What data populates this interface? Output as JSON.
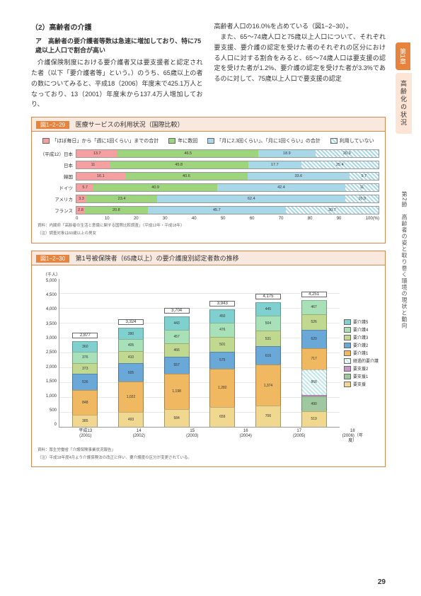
{
  "side": {
    "chapter": "第1章",
    "section": "高齢化の状況",
    "sub": "第2節　高齢者の姿と取り巻く環境の現状と動向"
  },
  "heading": "（2）高齢者の介護",
  "subheading": "ア　高齢者の要介護者等数は急速に増加しており、特に75歳以上人口で割合が高い",
  "leftpara": "介護保険制度における要介護者又は要支援者と認定された者（以下「要介護者等」という。）のうち、65歳以上の者の数についてみると、平成18（2006）年度末で425.1万人となっており、13（2001）年度末から137.4万人増加しており、",
  "rightpara1": "高齢者人口の16.0%を占めている（図1−2−30）。",
  "rightpara2": "また、65〜74歳人口と75歳以上人口について、それぞれ要支援、要介護の認定を受けた者のそれぞれの区分における人口に対する割合をみると、65〜74歳人口は要支援の認定を受けた者が1.2%、要介護の認定を受けた者が3.3%であるのに対して、75歳以上人口で要支援の認定",
  "fig1": {
    "no": "図1−2−29",
    "title": "医療サービスの利用状況（国際比較）",
    "legend": [
      {
        "label": "「ほぼ毎日」から「週に1回くらい」までの合計",
        "color": "#f4a0a0"
      },
      {
        "label": "年に数回",
        "color": "#9ed47e"
      },
      {
        "label": "「月に2,3回くらい」、「月に1回くらい」の合計",
        "color": "#a8d8e8"
      },
      {
        "label": "利用していない",
        "repeating-linear-gradient": true,
        "color": "#a8d8e8"
      }
    ],
    "note1": "資料：内閣府「高齢者の生活と意識に関する国際比較調査」（平成12年・平成18年）",
    "note2": "（注）調査対象は60歳以上の男女",
    "rows": [
      {
        "label": "（平成12）日本",
        "seg": [
          13.7,
          46.5,
          18.9,
          20.9
        ]
      },
      {
        "label": "日本",
        "seg": [
          11.0,
          45.8,
          17.7,
          25.4
        ]
      },
      {
        "label": "韓国",
        "seg": [
          16.1,
          40.6,
          33.6,
          9.7
        ]
      },
      {
        "label": "ドイツ",
        "seg": [
          5.7,
          40.9,
          42.4,
          11.0
        ]
      },
      {
        "label": "アメリカ",
        "seg": [
          3.3,
          23.4,
          62.4,
          10.9
        ]
      },
      {
        "label": "フランス",
        "seg": [
          2.8,
          20.8,
          45.7,
          30.7
        ]
      }
    ],
    "colors": [
      "#f4a0a0",
      "#9ed47e",
      "#a8d8e8",
      "repeating-linear-gradient(45deg,#a8d8e8,#a8d8e8 2px,#fff 2px,#fff 4px)"
    ],
    "ticks": [
      "0",
      "10",
      "20",
      "30",
      "40",
      "50",
      "60",
      "70",
      "80",
      "90",
      "100(%)"
    ]
  },
  "fig2": {
    "no": "図1−2−30",
    "title": "第1号被保険者（65歳以上）の要介護度別認定者数の推移",
    "yunit": "（千人）",
    "ymax": 5000,
    "yticks": [
      "5,000",
      "4,500",
      "4,000",
      "3,500",
      "3,000",
      "2,500",
      "2,000",
      "1,500",
      "1,000",
      "500",
      "0"
    ],
    "legend": [
      {
        "label": "要介護5",
        "color": "#80d0d0"
      },
      {
        "label": "要介護4",
        "color": "#a8e0b8"
      },
      {
        "label": "要介護3",
        "color": "#c0d890"
      },
      {
        "label": "要介護2",
        "color": "#6aa8d8"
      },
      {
        "label": "要介護1",
        "color": "#f0b860"
      },
      {
        "label": "経過的要介護",
        "pattern": true,
        "color": "#c0e8e8"
      },
      {
        "label": "要支援2",
        "color": "#c898c8"
      },
      {
        "label": "要支援1",
        "color": "#a0c8a0"
      },
      {
        "label": "要支援",
        "color": "#f0d890"
      }
    ],
    "bars": [
      {
        "xlabel": "平成13\n(2001)",
        "total": "2,877",
        "stack": [
          {
            "v": 385,
            "c": "#f0d890"
          },
          {
            "v": 848,
            "c": "#f0b860"
          },
          {
            "v": 536,
            "c": "#6aa8d8"
          },
          {
            "v": 373,
            "c": "#c0d890"
          },
          {
            "v": 376,
            "c": "#a8e0b8"
          },
          {
            "v": 360,
            "c": "#80d0d0"
          }
        ]
      },
      {
        "xlabel": "14\n(2002)",
        "total": "3,324",
        "stack": [
          {
            "v": 493,
            "c": "#f0d890"
          },
          {
            "v": 1022,
            "c": "#f0b860"
          },
          {
            "v": 605,
            "c": "#6aa8d8"
          },
          {
            "v": 410,
            "c": "#c0d890"
          },
          {
            "v": 405,
            "c": "#a8e0b8"
          },
          {
            "v": 390,
            "c": "#80d0d0"
          }
        ]
      },
      {
        "xlabel": "15\n(2003)",
        "total": "3,704",
        "stack": [
          {
            "v": 584,
            "c": "#f0d890"
          },
          {
            "v": 1198,
            "c": "#f0b860"
          },
          {
            "v": 557,
            "c": "#6aa8d8"
          },
          {
            "v": 466,
            "c": "#c0d890"
          },
          {
            "v": 457,
            "c": "#a8e0b8"
          },
          {
            "v": 443,
            "c": "#80d0d0"
          }
        ]
      },
      {
        "xlabel": "16\n(2004)",
        "total": "3,943",
        "stack": [
          {
            "v": 659,
            "c": "#f0d890"
          },
          {
            "v": 1282,
            "c": "#f0b860"
          },
          {
            "v": 575,
            "c": "#6aa8d8"
          },
          {
            "v": 501,
            "c": "#c0d890"
          },
          {
            "v": 476,
            "c": "#a8e0b8"
          },
          {
            "v": 450,
            "c": "#80d0d0"
          }
        ]
      },
      {
        "xlabel": "17\n(2005)",
        "total": "4,175",
        "stack": [
          {
            "v": 706,
            "c": "#f0d890"
          },
          {
            "v": 1374,
            "c": "#f0b860"
          },
          {
            "v": 616,
            "c": "#6aa8d8"
          },
          {
            "v": 531,
            "c": "#c0d890"
          },
          {
            "v": 504,
            "c": "#a8e0b8"
          },
          {
            "v": 445,
            "c": "#80d0d0"
          }
        ]
      },
      {
        "xlabel": "18\n(2006)（年度）",
        "total": "4,251",
        "stack": [
          {
            "v": 519,
            "c": "#f0d890"
          },
          {
            "v": 490,
            "c": "#a0c8a0"
          },
          {
            "v": 46,
            "c": "#c898c8"
          },
          {
            "v": 868,
            "c": "#c0e8e8",
            "pattern": true
          },
          {
            "v": 717,
            "c": "#f0b860"
          },
          {
            "v": 620,
            "c": "#6aa8d8"
          },
          {
            "v": 526,
            "c": "#c0d890"
          },
          {
            "v": 467,
            "c": "#a8e0b8"
          }
        ]
      }
    ],
    "note1": "資料：厚生労働省「介護保険事業状況報告」",
    "note2": "（注）平成18年度4月より介護保険法の改正に伴い、要介護度の区分が変更されている。"
  },
  "pagenum": "29"
}
